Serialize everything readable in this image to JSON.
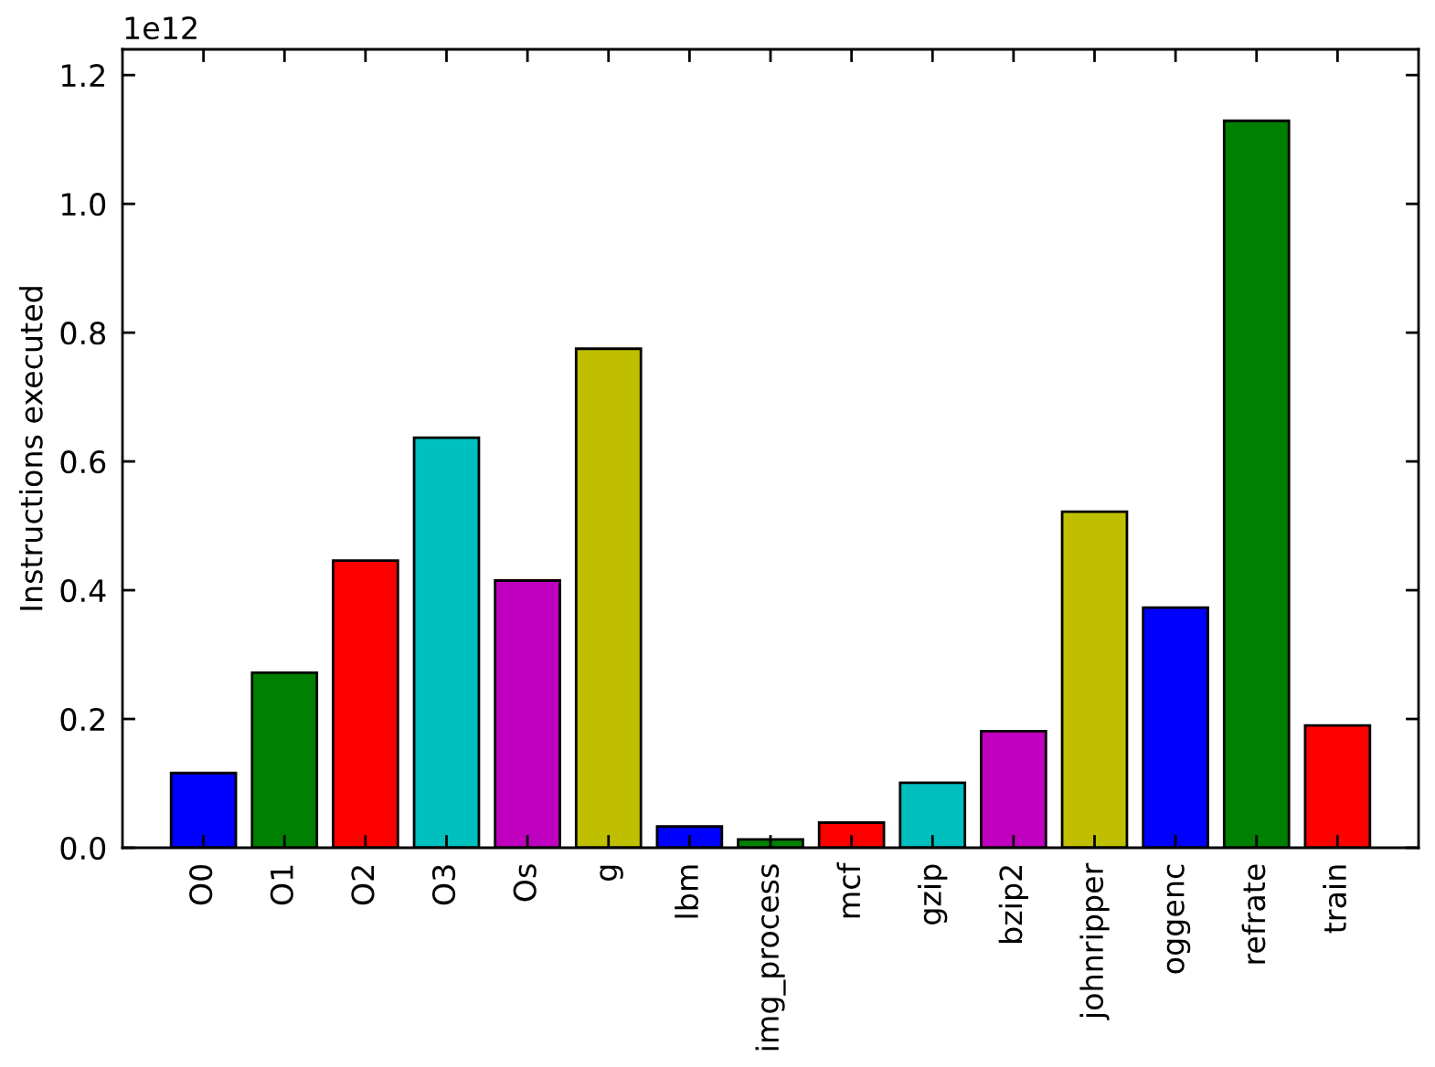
{
  "chart_data": {
    "type": "bar",
    "ylabel": "Instructions executed",
    "categories": [
      "O0",
      "O1",
      "O2",
      "O3",
      "Os",
      "g",
      "lbm",
      "img_process",
      "mcf",
      "gzip",
      "bzip2",
      "johnripper",
      "oggenc",
      "refrate",
      "train"
    ],
    "values": [
      0.116,
      0.272,
      0.446,
      0.637,
      0.415,
      0.775,
      0.033,
      0.013,
      0.039,
      0.101,
      0.181,
      0.522,
      0.373,
      1.129,
      0.19
    ],
    "colors": [
      "#0000ff",
      "#008000",
      "#ff0000",
      "#00bfbf",
      "#bf00bf",
      "#bfbf00",
      "#0000ff",
      "#008000",
      "#ff0000",
      "#00bfbf",
      "#bf00bf",
      "#bfbf00",
      "#0000ff",
      "#008000",
      "#ff0000"
    ],
    "ylim": [
      0,
      1.24
    ],
    "yticks": [
      {
        "value": 0,
        "label": "0.0"
      },
      0.2,
      0.4,
      0.6,
      0.8,
      {
        "value": 1,
        "label": "1.0"
      },
      1.2
    ],
    "annotations": [
      "1e12"
    ],
    "grid": false,
    "legend": false
  }
}
